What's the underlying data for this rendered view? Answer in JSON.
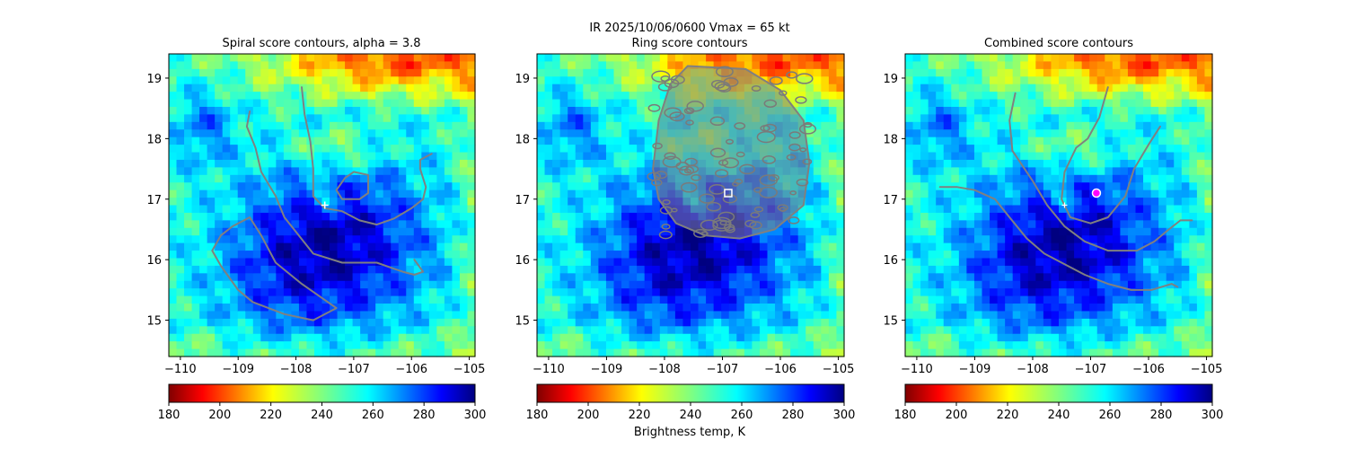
{
  "figure": {
    "suptitle_line1": "IR  2025/10/06/0600    Vmax = 65 kt"
  },
  "chart_data": [
    {
      "type": "heatmap",
      "title": "Spiral score contours, alpha =  3.8",
      "xlim": [
        -110.2,
        -104.9
      ],
      "ylim": [
        14.4,
        19.4
      ],
      "xticks": [
        -110,
        -109,
        -108,
        -107,
        -106,
        -105
      ],
      "yticks": [
        15,
        16,
        17,
        18,
        19
      ],
      "colorbar": {
        "label": "",
        "range": [
          180,
          300
        ],
        "ticks": [
          180,
          200,
          220,
          240,
          260,
          280,
          300
        ]
      },
      "center_marker": {
        "lon": -107.5,
        "lat": 16.9
      },
      "contour_lon_lat": [
        [
          [
            -107.9,
            18.85
          ],
          [
            -107.85,
            18.4
          ],
          [
            -107.75,
            17.95
          ],
          [
            -107.7,
            17.5
          ],
          [
            -107.7,
            17.05
          ],
          [
            -107.5,
            16.85
          ],
          [
            -107.2,
            16.8
          ],
          [
            -106.9,
            16.65
          ],
          [
            -106.6,
            16.58
          ],
          [
            -106.3,
            16.68
          ],
          [
            -106.0,
            16.85
          ],
          [
            -105.8,
            17.0
          ],
          [
            -105.75,
            17.2
          ],
          [
            -105.85,
            17.5
          ],
          [
            -105.85,
            17.65
          ],
          [
            -105.65,
            17.75
          ]
        ],
        [
          [
            -108.8,
            18.45
          ],
          [
            -108.85,
            18.2
          ],
          [
            -108.7,
            17.85
          ],
          [
            -108.6,
            17.45
          ],
          [
            -108.35,
            17.05
          ],
          [
            -108.2,
            16.7
          ],
          [
            -107.95,
            16.4
          ],
          [
            -107.7,
            16.1
          ],
          [
            -107.2,
            15.95
          ],
          [
            -106.6,
            15.95
          ],
          [
            -106.3,
            15.85
          ],
          [
            -106.15,
            15.8
          ],
          [
            -105.95,
            15.75
          ],
          [
            -105.8,
            15.8
          ],
          [
            -105.95,
            16.0
          ]
        ],
        [
          [
            -107.15,
            17.35
          ],
          [
            -107.0,
            17.45
          ],
          [
            -106.75,
            17.4
          ],
          [
            -106.75,
            17.1
          ],
          [
            -106.9,
            17.0
          ],
          [
            -107.2,
            17.0
          ],
          [
            -107.3,
            17.15
          ],
          [
            -107.15,
            17.35
          ]
        ],
        [
          [
            -108.8,
            16.7
          ],
          [
            -108.6,
            16.4
          ],
          [
            -108.35,
            15.95
          ],
          [
            -107.9,
            15.6
          ],
          [
            -107.6,
            15.4
          ],
          [
            -107.3,
            15.2
          ],
          [
            -107.7,
            15.0
          ],
          [
            -108.2,
            15.1
          ],
          [
            -108.75,
            15.3
          ],
          [
            -109.0,
            15.5
          ],
          [
            -109.3,
            15.9
          ],
          [
            -109.45,
            16.15
          ],
          [
            -109.3,
            16.4
          ],
          [
            -109.1,
            16.55
          ],
          [
            -108.8,
            16.7
          ]
        ]
      ]
    },
    {
      "type": "heatmap",
      "title": "Ring score contours",
      "xlim": [
        -110.2,
        -104.9
      ],
      "ylim": [
        14.4,
        19.4
      ],
      "xticks": [
        -110,
        -109,
        -108,
        -107,
        -106,
        -105
      ],
      "yticks": [
        15,
        16,
        17,
        18,
        19
      ],
      "colorbar": {
        "label": "Brightness temp, K",
        "range": [
          180,
          300
        ],
        "ticks": [
          180,
          200,
          220,
          240,
          260,
          280,
          300
        ]
      },
      "center_marker": {
        "lon": -106.9,
        "lat": 17.1
      },
      "contour_region_lon_lat": [
        [
          -107.6,
          19.2
        ],
        [
          -106.6,
          19.15
        ],
        [
          -106.0,
          18.8
        ],
        [
          -105.6,
          18.3
        ],
        [
          -105.5,
          17.6
        ],
        [
          -105.6,
          16.9
        ],
        [
          -106.1,
          16.5
        ],
        [
          -106.7,
          16.35
        ],
        [
          -107.3,
          16.4
        ],
        [
          -107.8,
          16.6
        ],
        [
          -108.1,
          17.0
        ],
        [
          -108.2,
          17.5
        ],
        [
          -108.1,
          18.3
        ],
        [
          -107.9,
          18.9
        ]
      ]
    },
    {
      "type": "heatmap",
      "title": "Combined score contours",
      "xlim": [
        -110.2,
        -104.9
      ],
      "ylim": [
        14.4,
        19.4
      ],
      "xticks": [
        -110,
        -109,
        -108,
        -107,
        -106,
        -105
      ],
      "yticks": [
        15,
        16,
        17,
        18,
        19
      ],
      "colorbar": {
        "label": "",
        "range": [
          180,
          300
        ],
        "ticks": [
          180,
          200,
          220,
          240,
          260,
          280,
          300
        ]
      },
      "center_marker": {
        "lon": -106.9,
        "lat": 17.1
      },
      "contour_lon_lat": [
        [
          [
            -106.7,
            18.85
          ],
          [
            -106.85,
            18.35
          ],
          [
            -107.05,
            18.0
          ],
          [
            -107.25,
            17.85
          ],
          [
            -107.45,
            17.45
          ],
          [
            -107.5,
            17.0
          ],
          [
            -107.35,
            16.7
          ],
          [
            -107.0,
            16.6
          ],
          [
            -106.7,
            16.7
          ],
          [
            -106.4,
            17.05
          ],
          [
            -106.25,
            17.5
          ],
          [
            -106.0,
            17.9
          ],
          [
            -105.8,
            18.2
          ]
        ],
        [
          [
            -108.3,
            18.75
          ],
          [
            -108.4,
            18.3
          ],
          [
            -108.35,
            17.8
          ],
          [
            -108.0,
            17.3
          ],
          [
            -107.75,
            16.9
          ],
          [
            -107.45,
            16.55
          ],
          [
            -107.1,
            16.3
          ],
          [
            -106.7,
            16.15
          ],
          [
            -106.2,
            16.15
          ],
          [
            -105.9,
            16.3
          ],
          [
            -105.65,
            16.5
          ],
          [
            -105.45,
            16.65
          ],
          [
            -105.25,
            16.65
          ]
        ],
        [
          [
            -109.6,
            17.2
          ],
          [
            -109.3,
            17.2
          ],
          [
            -109.0,
            17.15
          ],
          [
            -108.65,
            17.0
          ],
          [
            -108.4,
            16.7
          ],
          [
            -108.1,
            16.35
          ],
          [
            -107.8,
            16.1
          ],
          [
            -107.5,
            15.95
          ],
          [
            -107.1,
            15.75
          ],
          [
            -106.7,
            15.6
          ],
          [
            -106.3,
            15.5
          ],
          [
            -105.95,
            15.5
          ],
          [
            -105.6,
            15.6
          ],
          [
            -105.5,
            15.55
          ]
        ]
      ]
    }
  ]
}
